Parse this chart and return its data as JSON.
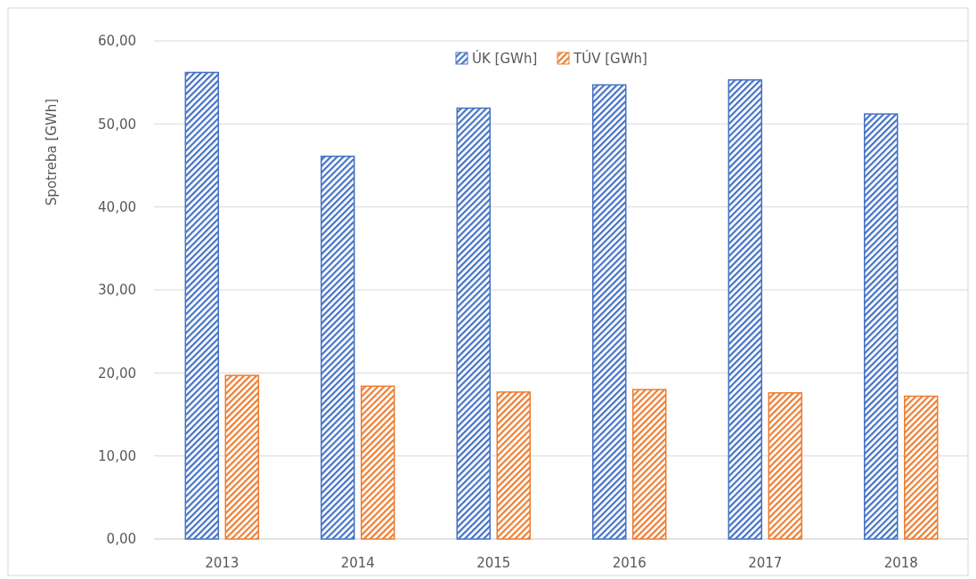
{
  "chart_data": {
    "type": "bar",
    "ylabel": "Spotreba [GWh]",
    "categories": [
      "2013",
      "2014",
      "2015",
      "2016",
      "2017",
      "2018"
    ],
    "series": [
      {
        "name": "ÚK [GWh]",
        "color": "#4472c4",
        "values": [
          56.2,
          46.1,
          51.9,
          54.7,
          55.3,
          51.2
        ]
      },
      {
        "name": "TÚV [GWh]",
        "color": "#ed7d31",
        "values": [
          19.7,
          18.4,
          17.7,
          18.0,
          17.6,
          17.2
        ]
      }
    ],
    "ylim": [
      0,
      60
    ],
    "yticks": [
      {
        "value": 0,
        "label": "0,00"
      },
      {
        "value": 10,
        "label": "10,00"
      },
      {
        "value": 20,
        "label": "20,00"
      },
      {
        "value": 30,
        "label": "30,00"
      },
      {
        "value": 40,
        "label": "40,00"
      },
      {
        "value": 50,
        "label": "50,00"
      },
      {
        "value": 60,
        "label": "60,00"
      }
    ],
    "grid": "y",
    "legend": "top"
  }
}
